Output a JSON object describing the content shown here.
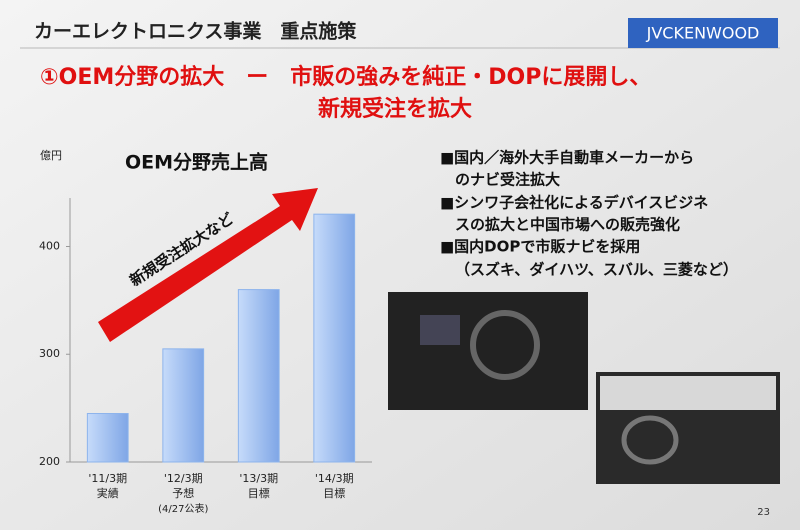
{
  "header": {
    "title": "カーエレクトロニクス事業　重点施策",
    "logo": "JVCKENWOOD",
    "page_number": "23"
  },
  "headline": [
    "①OEM分野の拡大　ー　市販の強みを純正・DOPに展開し、",
    "新規受注を拡大"
  ],
  "bullets": [
    [
      "■国内／海外大手自動車メーカーから",
      "のナビ受注拡大"
    ],
    [
      "■シンワ子会社化によるデバイスビジネ",
      "スの拡大と中国市場への販売強化"
    ],
    [
      "■国内DOPで市販ナビを採用",
      "（スズキ、ダイハツ、スバル、三菱など）"
    ]
  ],
  "chart_data": {
    "type": "bar",
    "title": "OEM分野売上高",
    "y_label": "億円",
    "annotation": "新規受注拡大など",
    "categories": [
      "'11/3期",
      "'12/3期",
      "'13/3期",
      "'14/3期"
    ],
    "category_notes": [
      [
        "実績"
      ],
      [
        "予想",
        "(4/27公表)"
      ],
      [
        "目標"
      ],
      [
        "目標"
      ]
    ],
    "values": [
      245,
      305,
      360,
      430
    ],
    "color": "#8db4ec",
    "ylim": [
      200,
      445
    ],
    "yticks": [
      200,
      300,
      400
    ],
    "grid": false
  }
}
